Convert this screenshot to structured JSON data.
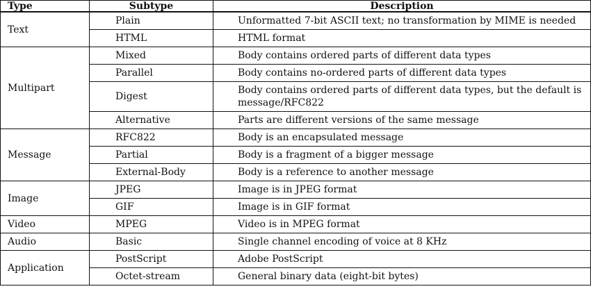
{
  "headers": {
    "type": "Type",
    "subtype": "Subtype",
    "description": "Description"
  },
  "groups": [
    {
      "type": "Text",
      "rows": [
        {
          "subtype": "Plain",
          "description": "Unformatted 7-bit ASCII text; no transformation by MIME is needed"
        },
        {
          "subtype": "HTML",
          "description": "HTML format"
        }
      ]
    },
    {
      "type": "Multipart",
      "rows": [
        {
          "subtype": "Mixed",
          "description": "Body contains ordered parts of different data types"
        },
        {
          "subtype": "Parallel",
          "description": "Body contains no-ordered parts of different data types"
        },
        {
          "subtype": "Digest",
          "description": "Body contains ordered parts of different data types, but the default is message/RFC822"
        },
        {
          "subtype": "Alternative",
          "description": "Parts are different versions of the same message"
        }
      ]
    },
    {
      "type": "Message",
      "rows": [
        {
          "subtype": "RFC822",
          "description": "Body is an encapsulated message"
        },
        {
          "subtype": "Partial",
          "description": "Body is a fragment of a bigger message"
        },
        {
          "subtype": "External-Body",
          "description": "Body is a reference to another message"
        }
      ]
    },
    {
      "type": "Image",
      "rows": [
        {
          "subtype": "JPEG",
          "description": "Image is in JPEG format"
        },
        {
          "subtype": "GIF",
          "description": "Image is in GIF format"
        }
      ]
    },
    {
      "type": "Video",
      "rows": [
        {
          "subtype": "MPEG",
          "description": "Video is in MPEG format"
        }
      ]
    },
    {
      "type": "Audio",
      "rows": [
        {
          "subtype": "Basic",
          "description": "Single channel encoding of voice at 8 KHz"
        }
      ]
    },
    {
      "type": "Application",
      "rows": [
        {
          "subtype": "PostScript",
          "description": "Adobe PostScript"
        },
        {
          "subtype": "Octet-stream",
          "description": "General binary data (eight-bit bytes)"
        }
      ]
    }
  ]
}
